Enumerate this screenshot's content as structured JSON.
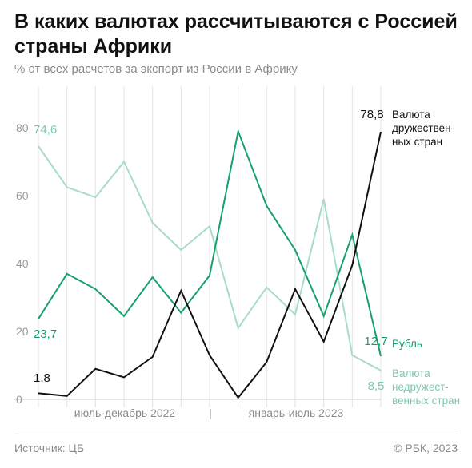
{
  "title": "В каких валютах рассчитываются с Россией страны Африки",
  "subtitle": "% от всех расчетов за экспорт из России в Африку",
  "source": "Источник: ЦБ",
  "copyright": "© РБК, 2023",
  "chart_data": {
    "type": "line",
    "ylim": [
      0,
      80
    ],
    "yticks": [
      0,
      20,
      40,
      60,
      80
    ],
    "grid": "vertical",
    "period_labels": [
      "июль-декабрь 2022",
      "|",
      "январь-июль 2023"
    ],
    "x": [
      1,
      2,
      3,
      4,
      5,
      6,
      7,
      8,
      9,
      10,
      11,
      12,
      13
    ],
    "series": [
      {
        "name": "Валюта недружественных стран",
        "label_lines": [
          "Валюта",
          "недружест-",
          "венных стран"
        ],
        "color": "#a8dcc6",
        "values": [
          74.6,
          62.5,
          59.5,
          70,
          52,
          44,
          51,
          21,
          33,
          25,
          59,
          13,
          8.5
        ],
        "start_label": "74,6",
        "end_label": "8,5"
      },
      {
        "name": "Рубль",
        "label_lines": [
          "Рубль"
        ],
        "color": "#16a06a",
        "values": [
          23.7,
          37,
          32.5,
          24.5,
          36,
          25.5,
          36.5,
          79,
          57,
          44,
          24.5,
          48.5,
          12.7
        ],
        "start_label": "23,7",
        "end_label": "12,7"
      },
      {
        "name": "Валюта дружественных стран",
        "label_lines": [
          "Валюта",
          "дружествен-",
          "ных стран"
        ],
        "color": "#111111",
        "values": [
          1.8,
          1,
          9,
          6.5,
          12.5,
          32,
          13,
          0.5,
          11,
          32.5,
          17,
          39.5,
          78.8
        ],
        "start_label": "1,8",
        "end_label": "78,8"
      }
    ]
  }
}
